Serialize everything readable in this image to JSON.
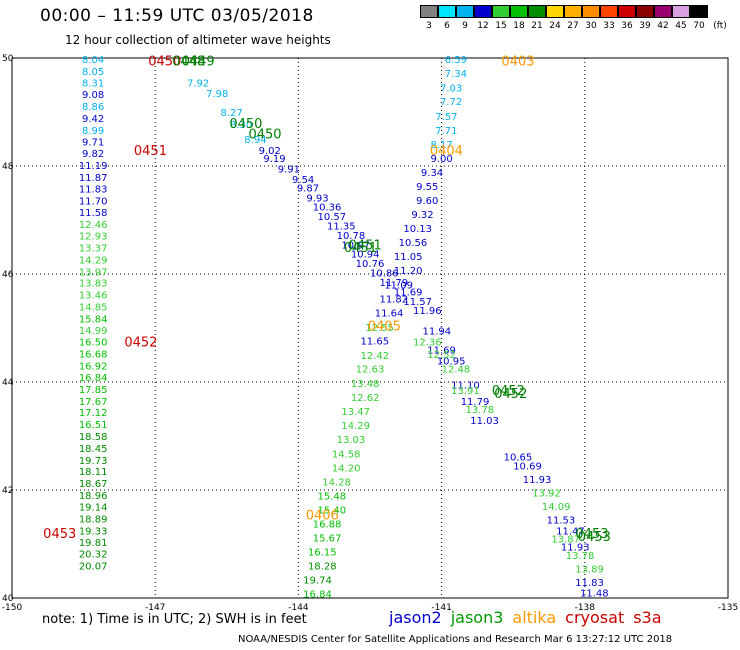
{
  "header": {
    "title": "00:00 – 11:59 UTC 03/05/2018",
    "subtitle": "12 hour collection of altimeter wave heights"
  },
  "color_scale": {
    "unit": "(ft)",
    "labels": [
      "3",
      "6",
      "9",
      "12",
      "15",
      "18",
      "21",
      "24",
      "27",
      "30",
      "33",
      "36",
      "39",
      "42",
      "45",
      "70"
    ],
    "colors": [
      "#808080",
      "#00e5ff",
      "#00b2ee",
      "#0000cd",
      "#32cd32",
      "#00c000",
      "#008c00",
      "#ffd700",
      "#ffb000",
      "#ff8c00",
      "#ff4500",
      "#cc0000",
      "#8b0000",
      "#9b006f",
      "#d8a0e0",
      "#000000"
    ]
  },
  "note": "note: 1) Time is in UTC; 2) SWH is in feet",
  "legend": [
    {
      "label": "jason2",
      "color": "#0000cc"
    },
    {
      "label": "jason3",
      "color": "#009900"
    },
    {
      "label": "altika",
      "color": "#ff9900"
    },
    {
      "label": "cryosat",
      "color": "#cc0000"
    },
    {
      "label": "s3a",
      "color": "#cc0000"
    }
  ],
  "footer": "NOAA/NESDIS Center for Satellite Applications and Research   Mar  6 13:27:12 UTC 2018",
  "chart_data": {
    "type": "scatter",
    "xlim": [
      -150,
      -135
    ],
    "ylim": [
      40,
      50
    ],
    "x_ticks": [
      -150,
      -147,
      -144,
      -141,
      -138,
      -135
    ],
    "y_ticks": [
      40,
      42,
      44,
      46,
      48,
      50
    ],
    "grid": "dotted",
    "track_labels": [
      {
        "text": "0450",
        "lon": -146.8,
        "lat": 49.95,
        "color": "#cc0000"
      },
      {
        "text": "0449",
        "lon": -146.1,
        "lat": 49.95,
        "color": "#008000"
      },
      {
        "text": "0448",
        "lon": -146.3,
        "lat": 49.95,
        "color": "#008000"
      },
      {
        "text": "0403",
        "lon": -139.4,
        "lat": 49.95,
        "color": "#ff9900"
      },
      {
        "text": "0450",
        "lon": -145.1,
        "lat": 48.8,
        "color": "#008000"
      },
      {
        "text": "0450",
        "lon": -144.7,
        "lat": 48.6,
        "color": "#008000"
      },
      {
        "text": "0451",
        "lon": -147.1,
        "lat": 48.3,
        "color": "#cc0000"
      },
      {
        "text": "0404",
        "lon": -140.9,
        "lat": 48.3,
        "color": "#ff9900"
      },
      {
        "text": "0451",
        "lon": -142.6,
        "lat": 46.55,
        "color": "#008000"
      },
      {
        "text": "0451",
        "lon": -142.7,
        "lat": 46.5,
        "color": "#008000"
      },
      {
        "text": "0452",
        "lon": -147.3,
        "lat": 44.75,
        "color": "#cc0000"
      },
      {
        "text": "0405",
        "lon": -142.2,
        "lat": 45.05,
        "color": "#ff9900"
      },
      {
        "text": "0452",
        "lon": -139.6,
        "lat": 43.85,
        "color": "#008000"
      },
      {
        "text": "0452",
        "lon": -139.55,
        "lat": 43.8,
        "color": "#008000"
      },
      {
        "text": "0453",
        "lon": -149.0,
        "lat": 41.2,
        "color": "#cc0000"
      },
      {
        "text": "0406",
        "lon": -143.5,
        "lat": 41.55,
        "color": "#ff9900"
      },
      {
        "text": "0453",
        "lon": -137.85,
        "lat": 41.2,
        "color": "#008000"
      },
      {
        "text": "0453",
        "lon": -137.8,
        "lat": 41.15,
        "color": "#008000"
      }
    ],
    "series": [
      {
        "name": "cryosat",
        "points": [
          {
            "lon": -148.3,
            "lat": 49.98,
            "swh": 8.04
          },
          {
            "lon": -148.3,
            "lat": 49.76,
            "swh": 8.05
          },
          {
            "lon": -148.3,
            "lat": 49.55,
            "swh": 8.31
          },
          {
            "lon": -148.3,
            "lat": 49.33,
            "swh": 9.08
          },
          {
            "lon": -148.3,
            "lat": 49.11,
            "swh": 8.86
          },
          {
            "lon": -148.3,
            "lat": 48.89,
            "swh": 9.42
          },
          {
            "lon": -148.3,
            "lat": 48.67,
            "swh": 8.99
          },
          {
            "lon": -148.3,
            "lat": 48.45,
            "swh": 9.71
          },
          {
            "lon": -148.3,
            "lat": 48.24,
            "swh": 9.82
          },
          {
            "lon": -148.3,
            "lat": 48.02,
            "swh": 11.19
          },
          {
            "lon": -148.3,
            "lat": 47.8,
            "swh": 11.87
          },
          {
            "lon": -148.3,
            "lat": 47.58,
            "swh": 11.83
          },
          {
            "lon": -148.3,
            "lat": 47.36,
            "swh": 11.7
          },
          {
            "lon": -148.3,
            "lat": 47.15,
            "swh": 11.58
          },
          {
            "lon": -148.3,
            "lat": 46.93,
            "swh": 12.46
          },
          {
            "lon": -148.3,
            "lat": 46.71,
            "swh": 12.93
          },
          {
            "lon": -148.3,
            "lat": 46.49,
            "swh": 13.37
          },
          {
            "lon": -148.3,
            "lat": 46.27,
            "swh": 14.29
          },
          {
            "lon": -148.3,
            "lat": 46.05,
            "swh": 13.97
          },
          {
            "lon": -148.3,
            "lat": 45.84,
            "swh": 13.83
          },
          {
            "lon": -148.3,
            "lat": 45.62,
            "swh": 13.46
          },
          {
            "lon": -148.3,
            "lat": 45.4,
            "swh": 14.85
          },
          {
            "lon": -148.3,
            "lat": 45.18,
            "swh": 15.84
          },
          {
            "lon": -148.3,
            "lat": 44.96,
            "swh": 14.99
          },
          {
            "lon": -148.3,
            "lat": 44.75,
            "swh": 16.5
          },
          {
            "lon": -148.3,
            "lat": 44.53,
            "swh": 16.68
          },
          {
            "lon": -148.3,
            "lat": 44.31,
            "swh": 16.92
          },
          {
            "lon": -148.3,
            "lat": 44.09,
            "swh": 16.84
          },
          {
            "lon": -148.3,
            "lat": 43.87,
            "swh": 17.85
          },
          {
            "lon": -148.3,
            "lat": 43.65,
            "swh": 17.67
          },
          {
            "lon": -148.3,
            "lat": 43.44,
            "swh": 17.12
          },
          {
            "lon": -148.3,
            "lat": 43.22,
            "swh": 16.51
          },
          {
            "lon": -148.3,
            "lat": 43.0,
            "swh": 18.58
          },
          {
            "lon": -148.3,
            "lat": 42.78,
            "swh": 18.45
          },
          {
            "lon": -148.3,
            "lat": 42.56,
            "swh": 19.73
          },
          {
            "lon": -148.3,
            "lat": 42.35,
            "swh": 18.11
          },
          {
            "lon": -148.3,
            "lat": 42.13,
            "swh": 18.67
          },
          {
            "lon": -148.3,
            "lat": 41.91,
            "swh": 18.96
          },
          {
            "lon": -148.3,
            "lat": 41.69,
            "swh": 19.14
          },
          {
            "lon": -148.3,
            "lat": 41.47,
            "swh": 18.89
          },
          {
            "lon": -148.3,
            "lat": 41.25,
            "swh": 19.33
          },
          {
            "lon": -148.3,
            "lat": 41.04,
            "swh": 19.81
          },
          {
            "lon": -148.3,
            "lat": 40.82,
            "swh": 20.32
          },
          {
            "lon": -148.3,
            "lat": 40.6,
            "swh": 20.07
          }
        ]
      },
      {
        "name": "altika_0403_0406",
        "points": [
          {
            "lon": -140.7,
            "lat": 49.98,
            "swh": 6.59
          },
          {
            "lon": -140.7,
            "lat": 49.72,
            "swh": 7.34
          },
          {
            "lon": -140.8,
            "lat": 49.45,
            "swh": 7.03
          },
          {
            "lon": -140.8,
            "lat": 49.2,
            "swh": 7.72
          },
          {
            "lon": -140.9,
            "lat": 48.93,
            "swh": 7.57
          },
          {
            "lon": -140.9,
            "lat": 48.67,
            "swh": 7.71
          },
          {
            "lon": -141.0,
            "lat": 48.41,
            "swh": 8.17
          },
          {
            "lon": -141.0,
            "lat": 48.15,
            "swh": 9.0
          },
          {
            "lon": -141.2,
            "lat": 47.89,
            "swh": 9.34
          },
          {
            "lon": -141.3,
            "lat": 47.63,
            "swh": 9.55
          },
          {
            "lon": -141.3,
            "lat": 47.37,
            "swh": 9.6
          },
          {
            "lon": -141.4,
            "lat": 47.11,
            "swh": 9.32
          },
          {
            "lon": -141.5,
            "lat": 46.85,
            "swh": 10.13
          },
          {
            "lon": -141.6,
            "lat": 46.59,
            "swh": 10.56
          },
          {
            "lon": -141.7,
            "lat": 46.33,
            "swh": 11.05
          },
          {
            "lon": -141.7,
            "lat": 46.07,
            "swh": 11.2
          },
          {
            "lon": -141.9,
            "lat": 45.81,
            "swh": 11.09
          },
          {
            "lon": -142.0,
            "lat": 45.55,
            "swh": 11.82
          },
          {
            "lon": -142.1,
            "lat": 45.29,
            "swh": 11.64
          },
          {
            "lon": -142.3,
            "lat": 45.02,
            "swh": 12.55
          },
          {
            "lon": -142.4,
            "lat": 44.77,
            "swh": 11.65
          },
          {
            "lon": -142.4,
            "lat": 44.5,
            "swh": 12.42
          },
          {
            "lon": -142.5,
            "lat": 44.25,
            "swh": 12.63
          },
          {
            "lon": -142.6,
            "lat": 43.98,
            "swh": 13.48
          },
          {
            "lon": -142.6,
            "lat": 43.72,
            "swh": 12.62
          },
          {
            "lon": -142.8,
            "lat": 43.46,
            "swh": 13.47
          },
          {
            "lon": -142.8,
            "lat": 43.2,
            "swh": 14.29
          },
          {
            "lon": -142.9,
            "lat": 42.94,
            "swh": 13.03
          },
          {
            "lon": -143.0,
            "lat": 42.68,
            "swh": 14.58
          },
          {
            "lon": -143.0,
            "lat": 42.42,
            "swh": 14.2
          },
          {
            "lon": -143.2,
            "lat": 42.16,
            "swh": 14.28
          },
          {
            "lon": -143.3,
            "lat": 41.9,
            "swh": 15.48
          },
          {
            "lon": -143.3,
            "lat": 41.64,
            "swh": 15.4
          },
          {
            "lon": -143.4,
            "lat": 41.38,
            "swh": 16.88
          },
          {
            "lon": -143.4,
            "lat": 41.12,
            "swh": 15.67
          },
          {
            "lon": -143.5,
            "lat": 40.86,
            "swh": 16.15
          },
          {
            "lon": -143.5,
            "lat": 40.6,
            "swh": 18.28
          },
          {
            "lon": -143.6,
            "lat": 40.34,
            "swh": 19.74
          },
          {
            "lon": -143.6,
            "lat": 40.08,
            "swh": 16.84
          }
        ]
      },
      {
        "name": "jason_0450_0453",
        "points": [
          {
            "lon": -146.1,
            "lat": 49.55,
            "swh": 7.92
          },
          {
            "lon": -145.7,
            "lat": 49.35,
            "swh": 7.98
          },
          {
            "lon": -145.4,
            "lat": 49.0,
            "swh": 8.27
          },
          {
            "lon": -145.2,
            "lat": 48.78,
            "swh": 8.3
          },
          {
            "lon": -144.9,
            "lat": 48.5,
            "swh": 8.94
          },
          {
            "lon": -144.6,
            "lat": 48.3,
            "swh": 9.02
          },
          {
            "lon": -144.5,
            "lat": 48.15,
            "swh": 9.19
          },
          {
            "lon": -144.2,
            "lat": 47.95,
            "swh": 9.91
          },
          {
            "lon": -143.9,
            "lat": 47.76,
            "swh": 9.54
          },
          {
            "lon": -143.8,
            "lat": 47.6,
            "swh": 9.87
          },
          {
            "lon": -143.6,
            "lat": 47.42,
            "swh": 9.93
          },
          {
            "lon": -143.4,
            "lat": 47.25,
            "swh": 10.36
          },
          {
            "lon": -143.3,
            "lat": 47.07,
            "swh": 10.57
          },
          {
            "lon": -143.1,
            "lat": 46.9,
            "swh": 11.35
          },
          {
            "lon": -142.9,
            "lat": 46.72,
            "swh": 10.78
          },
          {
            "lon": -142.8,
            "lat": 46.55,
            "swh": 10.97
          },
          {
            "lon": -142.6,
            "lat": 46.38,
            "swh": 10.94
          },
          {
            "lon": -142.5,
            "lat": 46.2,
            "swh": 10.76
          },
          {
            "lon": -142.2,
            "lat": 46.03,
            "swh": 10.86
          },
          {
            "lon": -142.0,
            "lat": 45.85,
            "swh": 11.79
          },
          {
            "lon": -141.7,
            "lat": 45.68,
            "swh": 11.69
          },
          {
            "lon": -141.5,
            "lat": 45.5,
            "swh": 11.57
          },
          {
            "lon": -141.3,
            "lat": 45.33,
            "swh": 11.96
          },
          {
            "lon": -141.1,
            "lat": 44.95,
            "swh": 11.94
          },
          {
            "lon": -141.0,
            "lat": 44.6,
            "swh": 11.69
          },
          {
            "lon": -140.8,
            "lat": 44.4,
            "swh": 10.95
          },
          {
            "lon": -140.5,
            "lat": 43.95,
            "swh": 11.1
          },
          {
            "lon": -140.3,
            "lat": 43.65,
            "swh": 11.79
          },
          {
            "lon": -140.1,
            "lat": 43.3,
            "swh": 11.03
          },
          {
            "lon": -139.4,
            "lat": 42.62,
            "swh": 10.65
          },
          {
            "lon": -139.2,
            "lat": 42.45,
            "swh": 10.69
          },
          {
            "lon": -139.0,
            "lat": 42.2,
            "swh": 11.93
          },
          {
            "lon": -138.5,
            "lat": 41.45,
            "swh": 11.53
          },
          {
            "lon": -138.3,
            "lat": 41.25,
            "swh": 11.47
          },
          {
            "lon": -138.2,
            "lat": 40.95,
            "swh": 11.93
          },
          {
            "lon": -137.9,
            "lat": 40.3,
            "swh": 11.83
          },
          {
            "lon": -137.8,
            "lat": 40.1,
            "swh": 11.48
          }
        ]
      },
      {
        "name": "jason_green_dup",
        "points": [
          {
            "lon": -141.3,
            "lat": 44.75,
            "swh": 12.36
          },
          {
            "lon": -141.0,
            "lat": 44.52,
            "swh": 12.52
          },
          {
            "lon": -140.7,
            "lat": 44.25,
            "swh": 12.48
          },
          {
            "lon": -140.5,
            "lat": 43.85,
            "swh": 13.91
          },
          {
            "lon": -140.2,
            "lat": 43.5,
            "swh": 13.78
          },
          {
            "lon": -138.8,
            "lat": 41.95,
            "swh": 13.92
          },
          {
            "lon": -138.6,
            "lat": 41.7,
            "swh": 14.09
          },
          {
            "lon": -138.4,
            "lat": 41.1,
            "swh": 13.87
          },
          {
            "lon": -138.1,
            "lat": 40.8,
            "swh": 13.78
          },
          {
            "lon": -137.9,
            "lat": 40.55,
            "swh": 13.89
          }
        ]
      }
    ]
  }
}
